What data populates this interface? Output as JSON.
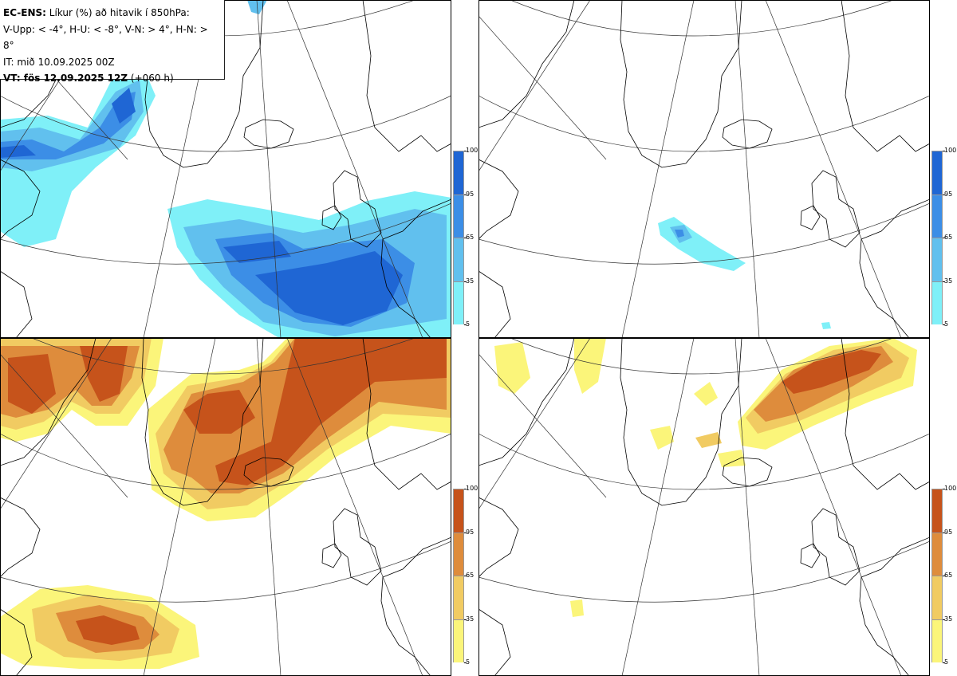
{
  "header": {
    "model_label": "EC-ENS:",
    "title_rest": "Líkur (%) að hitavik í 850hPa:",
    "legend_line": "V-Upp: < -4°, H-U: < -8°, V-N: > 4°, H-N: > 8°",
    "init_time": "IT: mið 10.09.2025 00Z",
    "valid_label": "VT: fös 12.09.2025 12Z",
    "valid_offset": "(+060 h)"
  },
  "colorbars": {
    "cold": {
      "ticks": [
        "100",
        "95",
        "65",
        "35",
        "5"
      ],
      "colors": [
        "#1f66d4",
        "#3c8ee6",
        "#61c0ee",
        "#7ff0f8"
      ]
    },
    "warm": {
      "ticks": [
        "100",
        "95",
        "65",
        "35",
        "5"
      ],
      "colors": [
        "#c6531b",
        "#de8c3c",
        "#f1cb62",
        "#fbf57a"
      ]
    }
  },
  "panels": [
    {
      "id": "cold-moderate",
      "scheme": "cold"
    },
    {
      "id": "cold-strong",
      "scheme": "cold"
    },
    {
      "id": "warm-moderate",
      "scheme": "warm"
    },
    {
      "id": "warm-strong",
      "scheme": "warm"
    }
  ]
}
